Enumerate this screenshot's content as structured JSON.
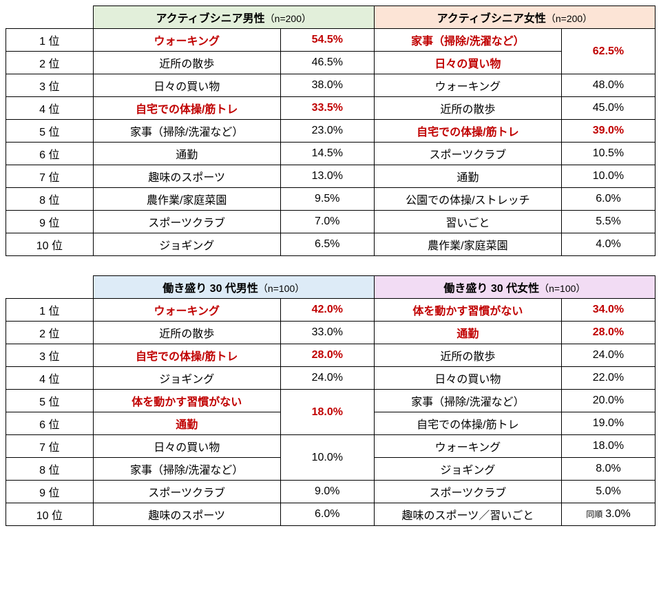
{
  "colors": {
    "green": "#e2efda",
    "peach": "#fce4d6",
    "blue": "#ddebf7",
    "pink": "#f2dcf4",
    "red": "#c00000",
    "border": "#000000",
    "bg": "#ffffff"
  },
  "table1": {
    "rankLabels": [
      "1 位",
      "2 位",
      "3 位",
      "4 位",
      "5 位",
      "6 位",
      "7 位",
      "8 位",
      "9 位",
      "10 位"
    ],
    "left": {
      "title": "アクティブシニア男性",
      "sub": "（n=200）",
      "rows": [
        {
          "act": "ウォーキング",
          "pct": "54.5%",
          "hl": true
        },
        {
          "act": "近所の散歩",
          "pct": "46.5%"
        },
        {
          "act": "日々の買い物",
          "pct": "38.0%"
        },
        {
          "act": "自宅での体操/筋トレ",
          "pct": "33.5%",
          "hl": true
        },
        {
          "act": "家事（掃除/洗濯など）",
          "pct": "23.0%"
        },
        {
          "act": "通勤",
          "pct": "14.5%"
        },
        {
          "act": "趣味のスポーツ",
          "pct": "13.0%"
        },
        {
          "act": "農作業/家庭菜園",
          "pct": "9.5%"
        },
        {
          "act": "スポーツクラブ",
          "pct": "7.0%"
        },
        {
          "act": "ジョギング",
          "pct": "6.5%"
        }
      ]
    },
    "right": {
      "title": "アクティブシニア女性",
      "sub": "（n=200）",
      "rows": [
        {
          "act": "家事（掃除/洗濯など）",
          "hlAct": true
        },
        {
          "act": "日々の買い物",
          "hlAct": true
        },
        {
          "act": "ウォーキング",
          "pct": "48.0%"
        },
        {
          "act": "近所の散歩",
          "pct": "45.0%"
        },
        {
          "act": "自宅での体操/筋トレ",
          "pct": "39.0%",
          "hl": true
        },
        {
          "act": "スポーツクラブ",
          "pct": "10.5%"
        },
        {
          "act": "通勤",
          "pct": "10.0%"
        },
        {
          "act": "公園での体操/ストレッチ",
          "pct": "6.0%"
        },
        {
          "act": "習いごと",
          "pct": "5.5%"
        },
        {
          "act": "農作業/家庭菜園",
          "pct": "4.0%"
        }
      ],
      "mergedPct12": "62.5%"
    }
  },
  "table2": {
    "rankLabels": [
      "1 位",
      "2 位",
      "3 位",
      "4 位",
      "5 位",
      "6 位",
      "7 位",
      "8 位",
      "9 位",
      "10 位"
    ],
    "left": {
      "title": "働き盛り 30 代男性",
      "sub": "（n=100）",
      "rows": [
        {
          "act": "ウォーキング",
          "pct": "42.0%",
          "hl": true
        },
        {
          "act": "近所の散歩",
          "pct": "33.0%"
        },
        {
          "act": "自宅での体操/筋トレ",
          "pct": "28.0%",
          "hl": true
        },
        {
          "act": "ジョギング",
          "pct": "24.0%"
        },
        {
          "act": "体を動かす習慣がない",
          "hlAct": true
        },
        {
          "act": "通勤",
          "hlAct": true
        },
        {
          "act": "日々の買い物"
        },
        {
          "act": "家事（掃除/洗濯など）"
        },
        {
          "act": "スポーツクラブ",
          "pct": "9.0%"
        },
        {
          "act": "趣味のスポーツ",
          "pct": "6.0%"
        }
      ],
      "mergedPct56": "18.0%",
      "mergedPct78": "10.0%"
    },
    "right": {
      "title": "働き盛り 30 代女性",
      "sub": "（n=100）",
      "rows": [
        {
          "act": "体を動かす習慣がない",
          "pct": "34.0%",
          "hl": true
        },
        {
          "act": "通勤",
          "pct": "28.0%",
          "hl": true
        },
        {
          "act": "近所の散歩",
          "pct": "24.0%"
        },
        {
          "act": "日々の買い物",
          "pct": "22.0%"
        },
        {
          "act": "家事（掃除/洗濯など）",
          "pct": "20.0%"
        },
        {
          "act": "自宅での体操/筋トレ",
          "pct": "19.0%"
        },
        {
          "act": "ウォーキング",
          "pct": "18.0%"
        },
        {
          "act": "ジョギング",
          "pct": "8.0%"
        },
        {
          "act": "スポーツクラブ",
          "pct": "5.0%"
        },
        {
          "act": "趣味のスポーツ／習いごと",
          "pct": "3.0%",
          "note": "同順"
        }
      ]
    }
  }
}
